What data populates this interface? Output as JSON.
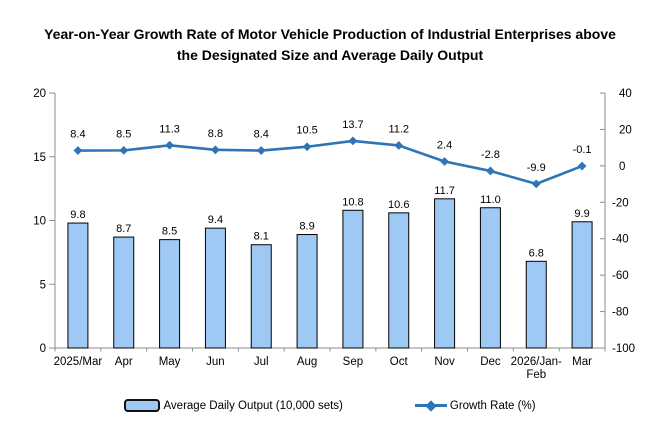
{
  "title": "Year-on-Year Growth Rate of Motor Vehicle Production of Industrial Enterprises above the Designated Size and Average Daily Output",
  "chart_data": {
    "type": "combo-bar-line",
    "categories": [
      "2025/Mar",
      "Apr",
      "May",
      "Jun",
      "Jul",
      "Aug",
      "Sep",
      "Oct",
      "Nov",
      "Dec",
      "2026/Jan-Feb",
      "Mar"
    ],
    "category_labels": [
      [
        "2025/Mar"
      ],
      [
        "Apr"
      ],
      [
        "May"
      ],
      [
        "Jun"
      ],
      [
        "Jul"
      ],
      [
        "Aug"
      ],
      [
        "Sep"
      ],
      [
        "Oct"
      ],
      [
        "Nov"
      ],
      [
        "Dec"
      ],
      [
        "2026/Jan-",
        "Feb"
      ],
      [
        "Mar"
      ]
    ],
    "series": [
      {
        "name": "Average Daily Output (10,000 sets)",
        "type": "bar",
        "axis": "left",
        "values": [
          9.8,
          8.7,
          8.5,
          9.4,
          8.1,
          8.9,
          10.8,
          10.6,
          11.7,
          11.0,
          6.8,
          9.9
        ],
        "fill": "#9FC9F5",
        "stroke": "#000000"
      },
      {
        "name": "Growth Rate (%)",
        "type": "line",
        "axis": "right",
        "marker": "diamond",
        "values": [
          8.4,
          8.5,
          11.3,
          8.8,
          8.4,
          10.5,
          13.7,
          11.2,
          2.4,
          -2.8,
          -9.9,
          -0.1
        ],
        "color": "#2E75B6"
      }
    ],
    "left_axis": {
      "min": 0,
      "max": 20,
      "ticks": [
        20,
        15,
        10,
        5,
        0
      ]
    },
    "right_axis": {
      "min": -100,
      "max": 40,
      "ticks": [
        40,
        20,
        0,
        -20,
        -40,
        -60,
        -80,
        -100
      ]
    },
    "grid": false,
    "legend_position": "bottom",
    "colors": {
      "axis": "#8E8E8E",
      "text": "#000000"
    }
  },
  "legend": {
    "bar_label": "Average Daily Output (10,000 sets)",
    "line_label": "Growth Rate (%)"
  }
}
